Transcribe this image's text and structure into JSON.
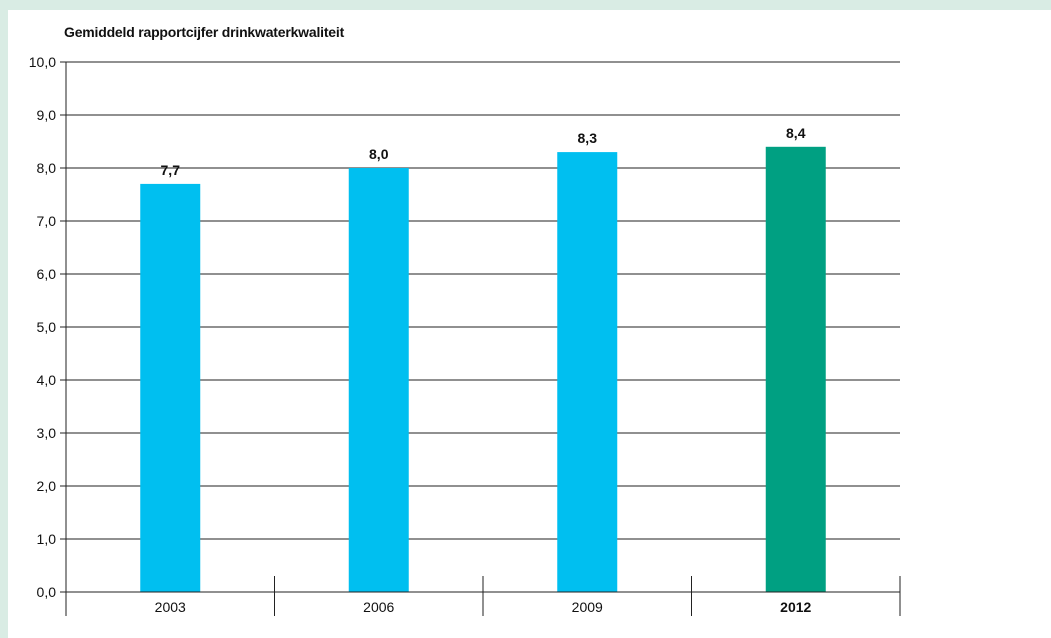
{
  "chart_data": {
    "type": "bar",
    "title": "Gemiddeld rapportcijfer drinkwaterkwaliteit",
    "categories": [
      "2003",
      "2006",
      "2009",
      "2012"
    ],
    "values": [
      7.7,
      8.0,
      8.3,
      8.4
    ],
    "value_labels": [
      "7,7",
      "8,0",
      "8,3",
      "8,4"
    ],
    "bold_categories": [
      "2012"
    ],
    "colors": [
      "#00bff0",
      "#00bff0",
      "#00bff0",
      "#00a082"
    ],
    "ylim": [
      0,
      10
    ],
    "yticks": [
      "0,0",
      "1,0",
      "2,0",
      "3,0",
      "4,0",
      "5,0",
      "6,0",
      "7,0",
      "8,0",
      "9,0",
      "10,0"
    ],
    "grid": true,
    "legend": "none"
  }
}
